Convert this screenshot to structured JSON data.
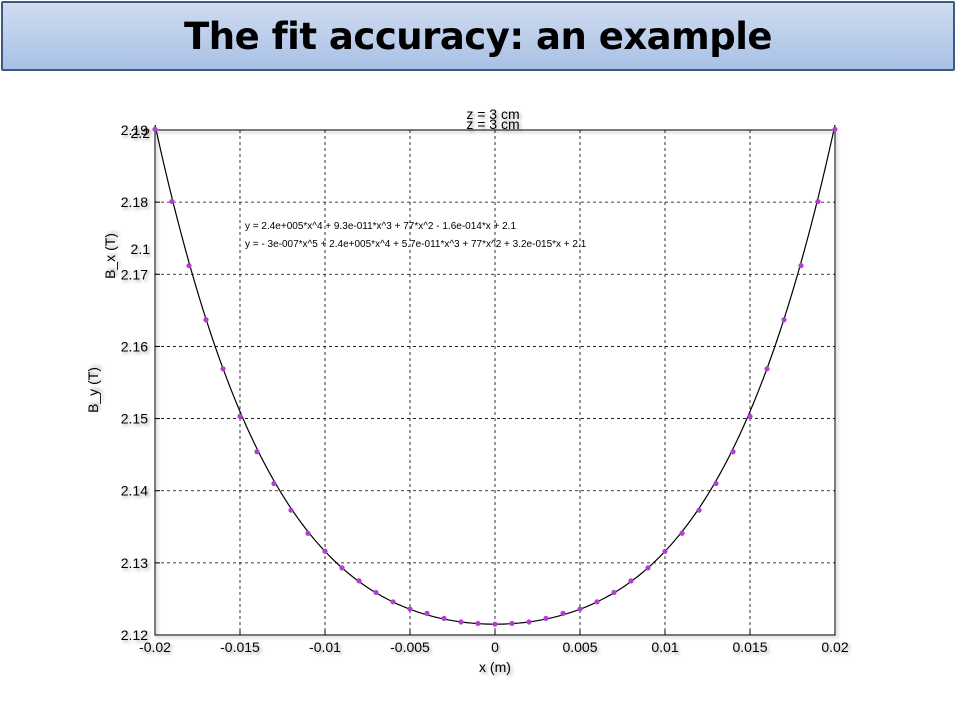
{
  "slide": {
    "title": "The fit accuracy: an example"
  },
  "colors": {
    "title_bar": "#b4c8e8",
    "title_border": "#3d5a80",
    "data_markers": "#b040d0",
    "fit_curve": "#000000"
  },
  "chart_data": {
    "type": "scatter",
    "title": "z = 3 cm",
    "ghost_title": "z = 3 cm",
    "xlabel": "x (m)",
    "ylabel": "B_y (T)",
    "ghost_ylabel": "B_x (T)",
    "xlim": [
      -0.02,
      0.02
    ],
    "ylim": [
      2.12,
      2.19
    ],
    "x_ticks": [
      -0.02,
      -0.015,
      -0.01,
      -0.005,
      0,
      0.005,
      0.01,
      0.015,
      0.02
    ],
    "x_tick_labels": [
      "-0.02",
      "-0.015",
      "-0.01",
      "-0.005",
      "0",
      "0.005",
      "0.01",
      "0.015",
      "0.02"
    ],
    "y_ticks": [
      2.12,
      2.13,
      2.14,
      2.15,
      2.16,
      2.17,
      2.18,
      2.19
    ],
    "y_tick_labels": [
      "2.12",
      "2.13",
      "2.14",
      "2.15",
      "2.16",
      "2.17",
      "2.18",
      "2.19"
    ],
    "ghost_y_tick_labels": [
      "2.2",
      "2.1"
    ],
    "grid": true,
    "fit_equations": [
      "y = 2.4e+005*x^4 + 9.3e-011*x^3 + 77*x^2 - 1.6e-014*x + 2.1",
      "y = - 3e-007*x^5 + 2.4e+005*x^4 + 5.7e-011*x^3 + 77*x^2 + 3.2e-015*x + 2.1"
    ],
    "fit_model": {
      "c4": 240000,
      "c2": 77,
      "c0": 2.1215
    },
    "series": [
      {
        "marker": "dot",
        "x": [
          -0.02,
          -0.019,
          -0.018,
          -0.017,
          -0.016,
          -0.015,
          -0.014,
          -0.013,
          -0.012,
          -0.011,
          -0.01,
          -0.009,
          -0.008,
          -0.007,
          -0.006,
          -0.005,
          -0.004,
          -0.003,
          -0.002,
          -0.001,
          0,
          0.001,
          0.002,
          0.003,
          0.004,
          0.005,
          0.006,
          0.007,
          0.008,
          0.009,
          0.01,
          0.011,
          0.012,
          0.013,
          0.014,
          0.015,
          0.016,
          0.017,
          0.018,
          0.019,
          0.02
        ],
        "y": [
          2.1901,
          2.1801,
          2.1712,
          2.1637,
          2.1569,
          2.1503,
          2.1454,
          2.141,
          2.1373,
          2.1341,
          2.1316,
          2.1293,
          2.1275,
          2.1259,
          2.1246,
          2.1236,
          2.123,
          2.1223,
          2.1218,
          2.1216,
          2.1215,
          2.1216,
          2.1218,
          2.1223,
          2.123,
          2.1236,
          2.1246,
          2.1259,
          2.1275,
          2.1293,
          2.1316,
          2.1341,
          2.1373,
          2.141,
          2.1454,
          2.1503,
          2.1569,
          2.1637,
          2.1712,
          2.1801,
          2.1901
        ]
      }
    ]
  }
}
